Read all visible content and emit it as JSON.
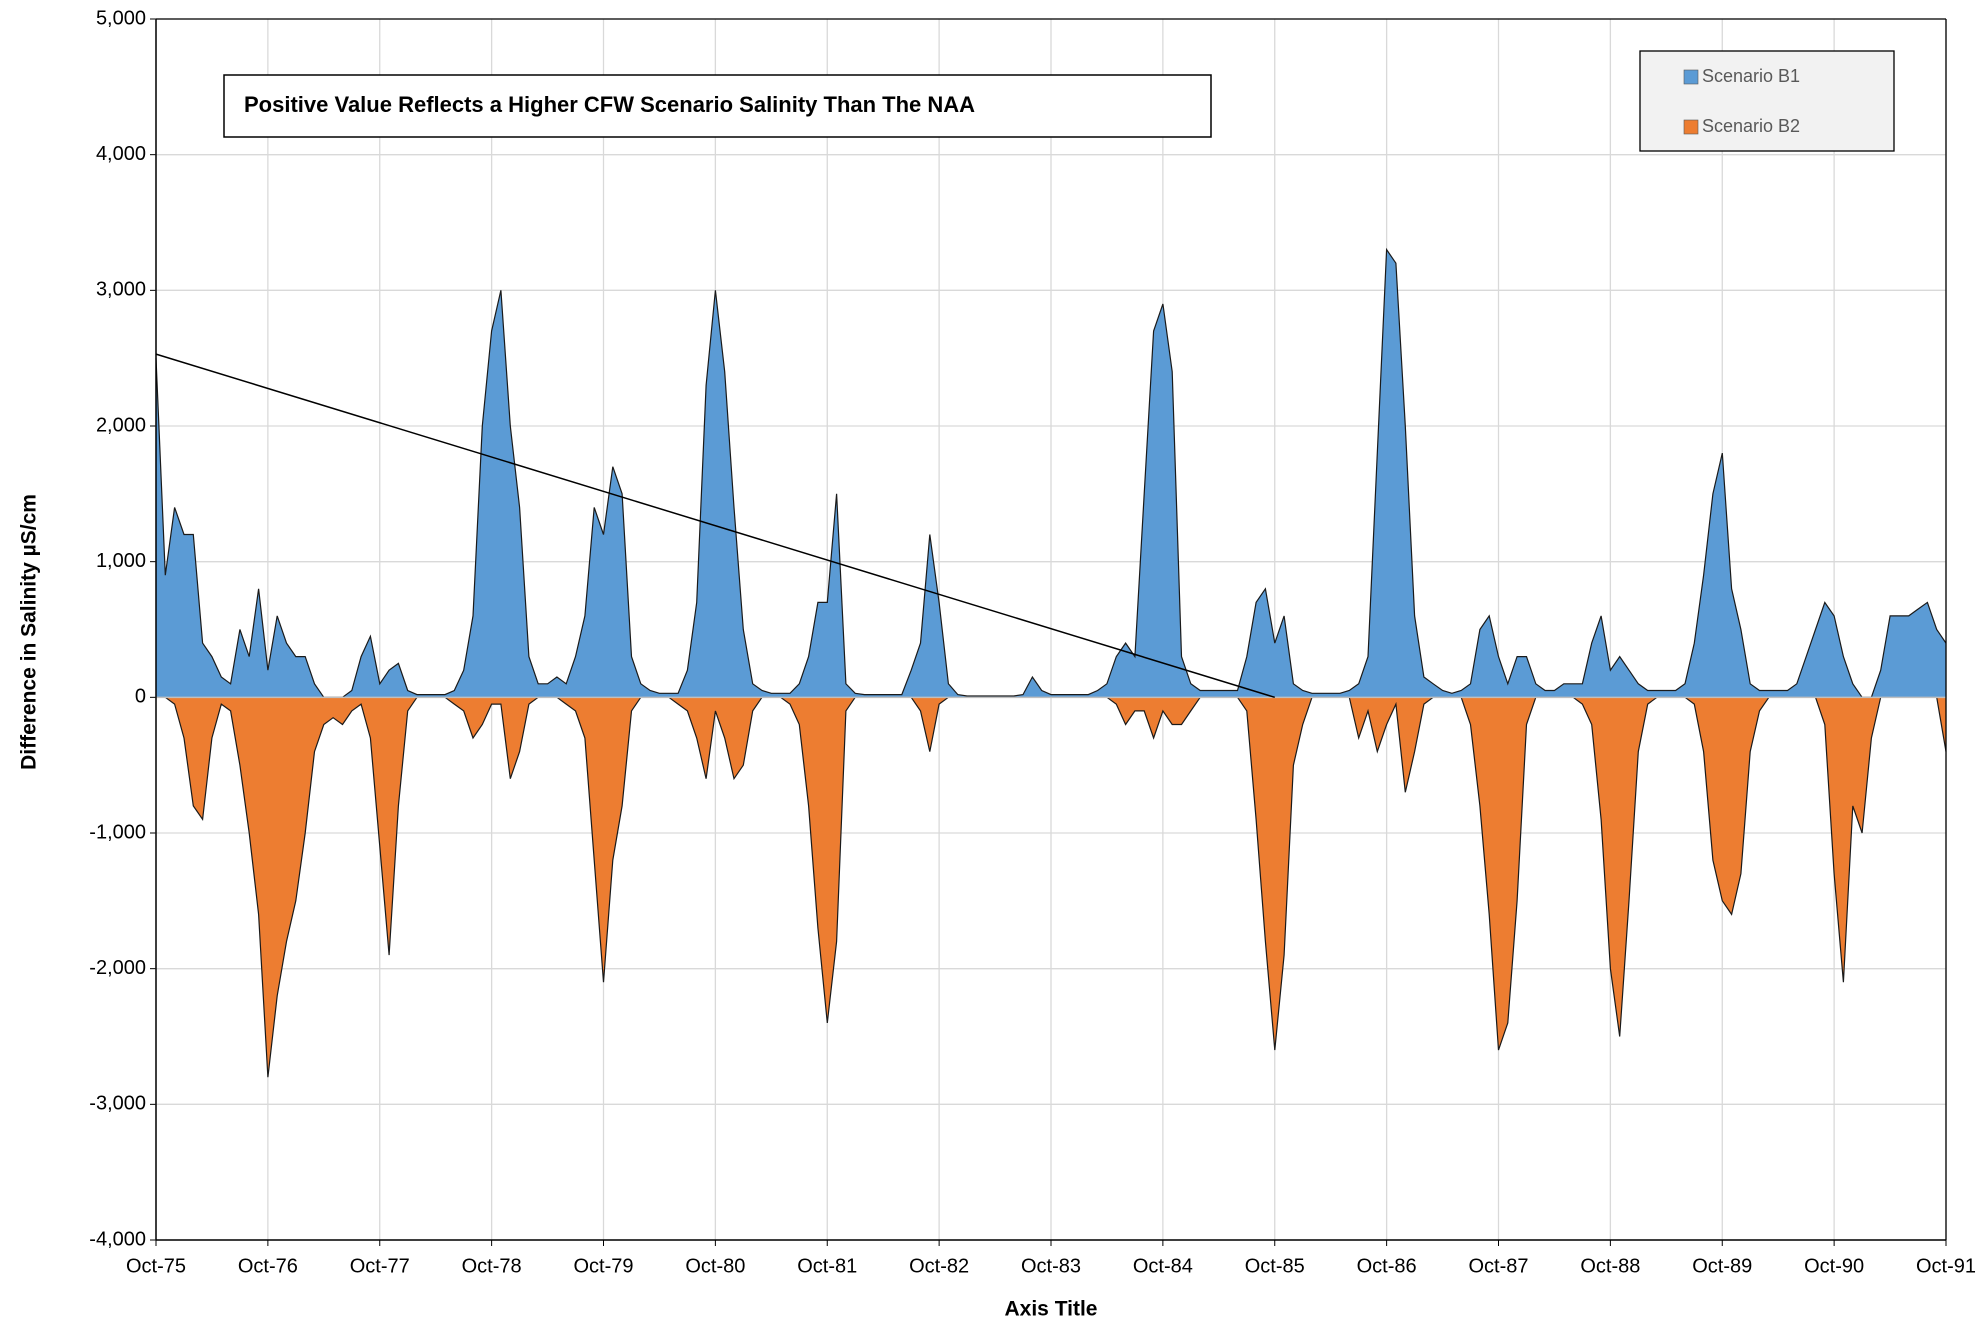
{
  "chart_data": {
    "type": "area",
    "xlabel": "Axis Title",
    "ylabel": "Difference in Salinity µS/cm",
    "annotation": "Positive Value Reflects a Higher CFW Scenario Salinity Than The NAA",
    "legend": "top-right",
    "grid": true,
    "ylim": [
      -4000,
      5000
    ],
    "yticks": [
      {
        "value": -4000,
        "label": "-4,000"
      },
      {
        "value": -3000,
        "label": "-3,000"
      },
      {
        "value": -2000,
        "label": "-2,000"
      },
      {
        "value": -1000,
        "label": "-1,000"
      },
      0,
      {
        "value": 1000,
        "label": "1,000"
      },
      {
        "value": 2000,
        "label": "2,000"
      },
      {
        "value": 3000,
        "label": "3,000"
      },
      {
        "value": 4000,
        "label": "4,000"
      },
      {
        "value": 5000,
        "label": "5,000"
      }
    ],
    "xticks": [
      "Oct-75",
      "Oct-76",
      "Oct-77",
      "Oct-78",
      "Oct-79",
      "Oct-80",
      "Oct-81",
      "Oct-82",
      "Oct-83",
      "Oct-84",
      "Oct-85",
      "Oct-86",
      "Oct-87",
      "Oct-88",
      "Oct-89",
      "Oct-90",
      "Oct-91"
    ],
    "x": [
      "Oct-75",
      "Nov-75",
      "Dec-75",
      "Jan-76",
      "Feb-76",
      "Mar-76",
      "Apr-76",
      "May-76",
      "Jun-76",
      "Jul-76",
      "Aug-76",
      "Sep-76",
      "Oct-76",
      "Nov-76",
      "Dec-76",
      "Jan-77",
      "Feb-77",
      "Mar-77",
      "Apr-77",
      "May-77",
      "Jun-77",
      "Jul-77",
      "Aug-77",
      "Sep-77",
      "Oct-77",
      "Nov-77",
      "Dec-77",
      "Jan-78",
      "Feb-78",
      "Mar-78",
      "Apr-78",
      "May-78",
      "Jun-78",
      "Jul-78",
      "Aug-78",
      "Sep-78",
      "Oct-78",
      "Nov-78",
      "Dec-78",
      "Jan-79",
      "Feb-79",
      "Mar-79",
      "Apr-79",
      "May-79",
      "Jun-79",
      "Jul-79",
      "Aug-79",
      "Sep-79",
      "Oct-79",
      "Nov-79",
      "Dec-79",
      "Jan-80",
      "Feb-80",
      "Mar-80",
      "Apr-80",
      "May-80",
      "Jun-80",
      "Jul-80",
      "Aug-80",
      "Sep-80",
      "Oct-80",
      "Nov-80",
      "Dec-80",
      "Jan-81",
      "Feb-81",
      "Mar-81",
      "Apr-81",
      "May-81",
      "Jun-81",
      "Jul-81",
      "Aug-81",
      "Sep-81",
      "Oct-81",
      "Nov-81",
      "Dec-81",
      "Jan-82",
      "Feb-82",
      "Mar-82",
      "Apr-82",
      "May-82",
      "Jun-82",
      "Jul-82",
      "Aug-82",
      "Sep-82",
      "Oct-82",
      "Nov-82",
      "Dec-82",
      "Jan-83",
      "Feb-83",
      "Mar-83",
      "Apr-83",
      "May-83",
      "Jun-83",
      "Jul-83",
      "Aug-83",
      "Sep-83",
      "Oct-83",
      "Nov-83",
      "Dec-83",
      "Jan-84",
      "Feb-84",
      "Mar-84",
      "Apr-84",
      "May-84",
      "Jun-84",
      "Jul-84",
      "Aug-84",
      "Sep-84",
      "Oct-84",
      "Nov-84",
      "Dec-84",
      "Jan-85",
      "Feb-85",
      "Mar-85",
      "Apr-85",
      "May-85",
      "Jun-85",
      "Jul-85",
      "Aug-85",
      "Sep-85",
      "Oct-85",
      "Nov-85",
      "Dec-85",
      "Jan-86",
      "Feb-86",
      "Mar-86",
      "Apr-86",
      "May-86",
      "Jun-86",
      "Jul-86",
      "Aug-86",
      "Sep-86",
      "Oct-86",
      "Nov-86",
      "Dec-86",
      "Jan-87",
      "Feb-87",
      "Mar-87",
      "Apr-87",
      "May-87",
      "Jun-87",
      "Jul-87",
      "Aug-87",
      "Sep-87",
      "Oct-87",
      "Nov-87",
      "Dec-87",
      "Jan-88",
      "Feb-88",
      "Mar-88",
      "Apr-88",
      "May-88",
      "Jun-88",
      "Jul-88",
      "Aug-88",
      "Sep-88",
      "Oct-88",
      "Nov-88",
      "Dec-88",
      "Jan-89",
      "Feb-89",
      "Mar-89",
      "Apr-89",
      "May-89",
      "Jun-89",
      "Jul-89",
      "Aug-89",
      "Sep-89",
      "Oct-89",
      "Nov-89",
      "Dec-89",
      "Jan-90",
      "Feb-90",
      "Mar-90",
      "Apr-90",
      "May-90",
      "Jun-90",
      "Jul-90",
      "Aug-90",
      "Sep-90",
      "Oct-90",
      "Nov-90",
      "Dec-90",
      "Jan-91",
      "Feb-91",
      "Mar-91",
      "Apr-91",
      "May-91",
      "Jun-91",
      "Jul-91",
      "Aug-91",
      "Sep-91",
      "Oct-91"
    ],
    "series": [
      {
        "name": "Scenario B2",
        "color": "#ed7d31",
        "values": [
          0,
          0,
          -50,
          -300,
          -800,
          -900,
          -300,
          -50,
          -100,
          -500,
          -1000,
          -1600,
          -2800,
          -2200,
          -1800,
          -1500,
          -1000,
          -400,
          -200,
          -150,
          -200,
          -100,
          -50,
          -300,
          -1100,
          -1900,
          -800,
          -100,
          0,
          0,
          0,
          0,
          -50,
          -100,
          -300,
          -200,
          -50,
          -50,
          -600,
          -400,
          -50,
          0,
          0,
          0,
          -50,
          -100,
          -300,
          -1200,
          -2100,
          -1200,
          -800,
          -100,
          0,
          0,
          0,
          0,
          -50,
          -100,
          -300,
          -600,
          -100,
          -300,
          -600,
          -500,
          -100,
          0,
          0,
          0,
          -50,
          -200,
          -800,
          -1700,
          -2400,
          -1800,
          -100,
          0,
          0,
          0,
          0,
          0,
          0,
          0,
          -100,
          -400,
          -50,
          0,
          0,
          0,
          0,
          0,
          0,
          0,
          0,
          0,
          0,
          0,
          0,
          0,
          0,
          0,
          0,
          0,
          0,
          -50,
          -200,
          -100,
          -100,
          -300,
          -100,
          -200,
          -200,
          -100,
          0,
          0,
          0,
          0,
          0,
          -100,
          -900,
          -1800,
          -2600,
          -1900,
          -500,
          -200,
          0,
          0,
          0,
          0,
          0,
          -300,
          -100,
          -400,
          -200,
          -50,
          -700,
          -400,
          -50,
          0,
          0,
          0,
          0,
          -200,
          -800,
          -1600,
          -2600,
          -2400,
          -1500,
          -200,
          0,
          0,
          0,
          0,
          0,
          -50,
          -200,
          -900,
          -2000,
          -2500,
          -1500,
          -400,
          -50,
          0,
          0,
          0,
          0,
          -50,
          -400,
          -1200,
          -1500,
          -1600,
          -1300,
          -400,
          -100,
          0,
          0,
          0,
          0,
          0,
          0,
          -200,
          -1300,
          -2100,
          -800,
          -1000,
          -300,
          0,
          0,
          0,
          0,
          0,
          0,
          0,
          -400
        ]
      },
      {
        "name": "Scenario B1",
        "color": "#5b9bd5",
        "values": [
          2500,
          900,
          1400,
          1200,
          1200,
          400,
          300,
          150,
          100,
          500,
          300,
          800,
          200,
          600,
          400,
          300,
          300,
          100,
          0,
          0,
          0,
          50,
          300,
          450,
          100,
          200,
          250,
          50,
          20,
          20,
          20,
          20,
          50,
          200,
          600,
          2000,
          2700,
          3000,
          2000,
          1400,
          300,
          100,
          100,
          150,
          100,
          300,
          600,
          1400,
          1200,
          1700,
          1500,
          300,
          100,
          50,
          30,
          30,
          30,
          200,
          700,
          2300,
          3000,
          2400,
          1400,
          500,
          100,
          50,
          30,
          30,
          30,
          100,
          300,
          700,
          700,
          1500,
          100,
          30,
          20,
          20,
          20,
          20,
          20,
          200,
          400,
          1200,
          700,
          100,
          20,
          10,
          10,
          10,
          10,
          10,
          10,
          20,
          150,
          50,
          20,
          20,
          20,
          20,
          20,
          50,
          100,
          300,
          400,
          300,
          1500,
          2700,
          2900,
          2400,
          300,
          100,
          50,
          50,
          50,
          50,
          50,
          300,
          700,
          800,
          400,
          600,
          100,
          50,
          30,
          30,
          30,
          30,
          50,
          100,
          300,
          1800,
          3300,
          3200,
          2000,
          600,
          150,
          100,
          50,
          30,
          50,
          100,
          500,
          600,
          300,
          100,
          300,
          300,
          100,
          50,
          50,
          100,
          100,
          100,
          400,
          600,
          200,
          300,
          200,
          100,
          50,
          50,
          50,
          50,
          100,
          400,
          900,
          1500,
          1800,
          800,
          500,
          100,
          50,
          50,
          50,
          50,
          100,
          300,
          500,
          700,
          600,
          300,
          100,
          0,
          0,
          200,
          600,
          600,
          600,
          650,
          700,
          500,
          400
        ]
      }
    ],
    "trendline": {
      "x": [
        "Oct-75",
        "Oct-85"
      ],
      "values": [
        2530,
        0
      ],
      "color": "#000000"
    }
  }
}
